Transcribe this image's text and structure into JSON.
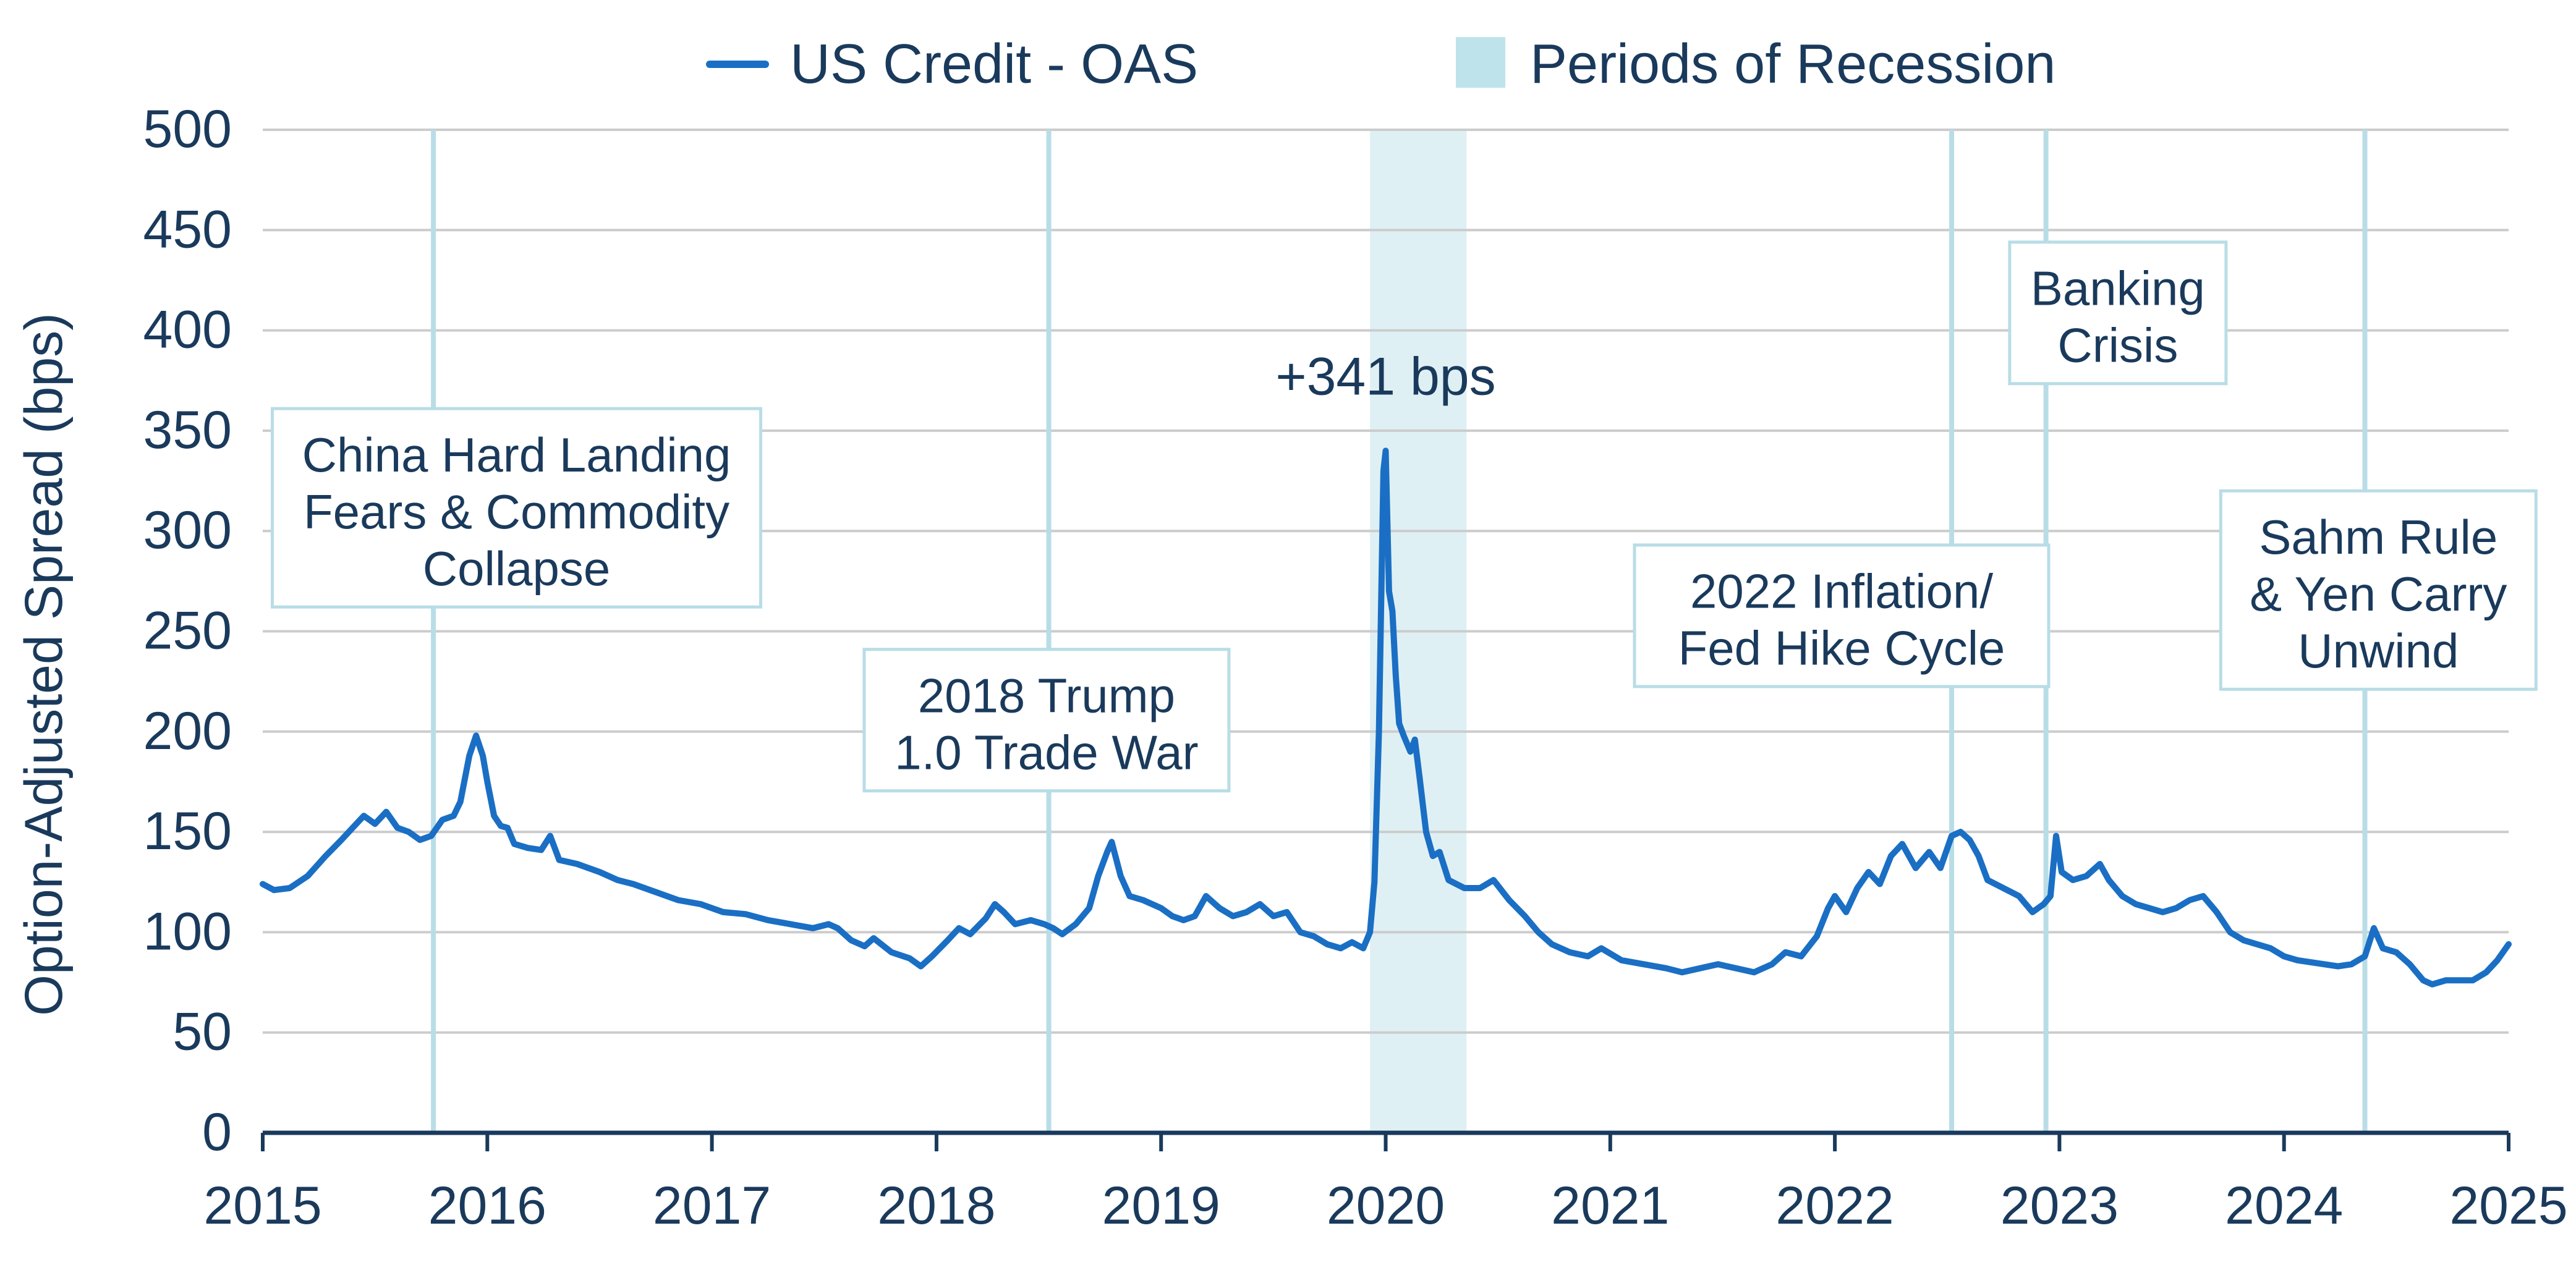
{
  "chart_data": {
    "type": "line",
    "title": "",
    "xlabel": "",
    "ylabel": "Option-Adjusted Spread (bps)",
    "xlim": [
      2015,
      2025
    ],
    "ylim": [
      0,
      500
    ],
    "y_ticks": [
      0,
      50,
      100,
      150,
      200,
      250,
      300,
      350,
      400,
      450,
      500
    ],
    "x_ticks": [
      2015,
      2016,
      2017,
      2018,
      2019,
      2020,
      2021,
      2022,
      2023,
      2024,
      2025
    ],
    "grid": "horizontal",
    "legend_placement": "top-center",
    "legend": [
      "US Credit - OAS",
      "Periods of Recession"
    ],
    "series": [
      {
        "name": "US Credit - OAS",
        "color": "#1a6fc4",
        "points": [
          [
            2015.0,
            124
          ],
          [
            2015.05,
            121
          ],
          [
            2015.12,
            122
          ],
          [
            2015.2,
            128
          ],
          [
            2015.28,
            138
          ],
          [
            2015.35,
            146
          ],
          [
            2015.4,
            152
          ],
          [
            2015.45,
            158
          ],
          [
            2015.5,
            154
          ],
          [
            2015.55,
            160
          ],
          [
            2015.6,
            152
          ],
          [
            2015.65,
            150
          ],
          [
            2015.7,
            146
          ],
          [
            2015.75,
            148
          ],
          [
            2015.8,
            156
          ],
          [
            2015.85,
            158
          ],
          [
            2015.88,
            165
          ],
          [
            2015.92,
            188
          ],
          [
            2015.95,
            198
          ],
          [
            2015.98,
            188
          ],
          [
            2016.0,
            175
          ],
          [
            2016.03,
            158
          ],
          [
            2016.06,
            153
          ],
          [
            2016.09,
            152
          ],
          [
            2016.12,
            144
          ],
          [
            2016.18,
            142
          ],
          [
            2016.24,
            141
          ],
          [
            2016.28,
            148
          ],
          [
            2016.32,
            136
          ],
          [
            2016.4,
            134
          ],
          [
            2016.5,
            130
          ],
          [
            2016.58,
            126
          ],
          [
            2016.65,
            124
          ],
          [
            2016.75,
            120
          ],
          [
            2016.85,
            116
          ],
          [
            2016.95,
            114
          ],
          [
            2017.05,
            110
          ],
          [
            2017.15,
            109
          ],
          [
            2017.25,
            106
          ],
          [
            2017.35,
            104
          ],
          [
            2017.45,
            102
          ],
          [
            2017.52,
            104
          ],
          [
            2017.56,
            102
          ],
          [
            2017.62,
            96
          ],
          [
            2017.68,
            93
          ],
          [
            2017.72,
            97
          ],
          [
            2017.8,
            90
          ],
          [
            2017.88,
            87
          ],
          [
            2017.93,
            83
          ],
          [
            2017.98,
            88
          ],
          [
            2018.05,
            96
          ],
          [
            2018.1,
            102
          ],
          [
            2018.15,
            99
          ],
          [
            2018.22,
            107
          ],
          [
            2018.26,
            114
          ],
          [
            2018.3,
            110
          ],
          [
            2018.35,
            104
          ],
          [
            2018.42,
            106
          ],
          [
            2018.48,
            104
          ],
          [
            2018.52,
            102
          ],
          [
            2018.56,
            99
          ],
          [
            2018.62,
            104
          ],
          [
            2018.68,
            112
          ],
          [
            2018.72,
            128
          ],
          [
            2018.76,
            140
          ],
          [
            2018.78,
            145
          ],
          [
            2018.82,
            128
          ],
          [
            2018.86,
            118
          ],
          [
            2018.92,
            116
          ],
          [
            2019.0,
            112
          ],
          [
            2019.05,
            108
          ],
          [
            2019.1,
            106
          ],
          [
            2019.15,
            108
          ],
          [
            2019.2,
            118
          ],
          [
            2019.26,
            112
          ],
          [
            2019.32,
            108
          ],
          [
            2019.38,
            110
          ],
          [
            2019.44,
            114
          ],
          [
            2019.5,
            108
          ],
          [
            2019.56,
            110
          ],
          [
            2019.62,
            100
          ],
          [
            2019.68,
            98
          ],
          [
            2019.74,
            94
          ],
          [
            2019.8,
            92
          ],
          [
            2019.85,
            95
          ],
          [
            2019.9,
            92
          ],
          [
            2019.93,
            100
          ],
          [
            2019.95,
            125
          ],
          [
            2019.97,
            200
          ],
          [
            2019.99,
            330
          ],
          [
            2020.0,
            340
          ],
          [
            2020.015,
            270
          ],
          [
            2020.03,
            260
          ],
          [
            2020.045,
            228
          ],
          [
            2020.06,
            204
          ],
          [
            2020.08,
            198
          ],
          [
            2020.11,
            190
          ],
          [
            2020.13,
            196
          ],
          [
            2020.15,
            178
          ],
          [
            2020.18,
            150
          ],
          [
            2020.21,
            138
          ],
          [
            2020.24,
            140
          ],
          [
            2020.28,
            126
          ],
          [
            2020.35,
            122
          ],
          [
            2020.42,
            122
          ],
          [
            2020.48,
            126
          ],
          [
            2020.55,
            116
          ],
          [
            2020.62,
            108
          ],
          [
            2020.68,
            100
          ],
          [
            2020.74,
            94
          ],
          [
            2020.82,
            90
          ],
          [
            2020.9,
            88
          ],
          [
            2020.96,
            92
          ],
          [
            2021.05,
            86
          ],
          [
            2021.15,
            84
          ],
          [
            2021.25,
            82
          ],
          [
            2021.32,
            80
          ],
          [
            2021.4,
            82
          ],
          [
            2021.48,
            84
          ],
          [
            2021.56,
            82
          ],
          [
            2021.64,
            80
          ],
          [
            2021.72,
            84
          ],
          [
            2021.78,
            90
          ],
          [
            2021.85,
            88
          ],
          [
            2021.92,
            98
          ],
          [
            2021.97,
            112
          ],
          [
            2022.0,
            118
          ],
          [
            2022.05,
            110
          ],
          [
            2022.1,
            122
          ],
          [
            2022.15,
            130
          ],
          [
            2022.2,
            124
          ],
          [
            2022.25,
            138
          ],
          [
            2022.3,
            144
          ],
          [
            2022.36,
            132
          ],
          [
            2022.42,
            140
          ],
          [
            2022.47,
            132
          ],
          [
            2022.52,
            148
          ],
          [
            2022.56,
            150
          ],
          [
            2022.6,
            146
          ],
          [
            2022.64,
            138
          ],
          [
            2022.68,
            126
          ],
          [
            2022.75,
            122
          ],
          [
            2022.82,
            118
          ],
          [
            2022.88,
            110
          ],
          [
            2022.93,
            114
          ],
          [
            2022.96,
            118
          ],
          [
            2022.985,
            148
          ],
          [
            2023.01,
            130
          ],
          [
            2023.06,
            126
          ],
          [
            2023.12,
            128
          ],
          [
            2023.18,
            134
          ],
          [
            2023.22,
            126
          ],
          [
            2023.28,
            118
          ],
          [
            2023.34,
            114
          ],
          [
            2023.4,
            112
          ],
          [
            2023.46,
            110
          ],
          [
            2023.52,
            112
          ],
          [
            2023.58,
            116
          ],
          [
            2023.64,
            118
          ],
          [
            2023.7,
            110
          ],
          [
            2023.76,
            100
          ],
          [
            2023.82,
            96
          ],
          [
            2023.88,
            94
          ],
          [
            2023.94,
            92
          ],
          [
            2024.0,
            88
          ],
          [
            2024.06,
            86
          ],
          [
            2024.12,
            85
          ],
          [
            2024.18,
            84
          ],
          [
            2024.24,
            83
          ],
          [
            2024.3,
            84
          ],
          [
            2024.36,
            88
          ],
          [
            2024.4,
            102
          ],
          [
            2024.44,
            92
          ],
          [
            2024.5,
            90
          ],
          [
            2024.56,
            84
          ],
          [
            2024.62,
            76
          ],
          [
            2024.66,
            74
          ],
          [
            2024.72,
            76
          ],
          [
            2024.78,
            76
          ],
          [
            2024.84,
            76
          ],
          [
            2024.9,
            80
          ],
          [
            2024.95,
            86
          ],
          [
            2025.0,
            94
          ]
        ]
      }
    ],
    "recession_periods": [
      [
        2019.93,
        2020.36
      ]
    ],
    "event_lines": [
      2015.76,
      2018.5,
      2022.52,
      2022.94,
      2024.36
    ],
    "annotations": [
      {
        "lines": [
          "China Hard Landing",
          "Fears & Commodity",
          "Collapse"
        ],
        "x": 2016.13,
        "y": 361
      },
      {
        "lines": [
          "2018 Trump",
          "1.0 Trade War"
        ],
        "x": 2018.49,
        "y": 241
      },
      {
        "lines": [
          "2022 Inflation/",
          "Fed Hike Cycle"
        ],
        "x": 2022.03,
        "y": 293
      },
      {
        "lines": [
          "Banking",
          "Crisis"
        ],
        "x": 2023.26,
        "y": 444
      },
      {
        "lines": [
          "Sahm Rule",
          "& Yen Carry",
          "Unwind"
        ],
        "x": 2024.42,
        "y": 320
      }
    ],
    "peak_label": {
      "text": "+341 bps",
      "x": 2020.0,
      "y": 368
    }
  },
  "colors": {
    "line": "#1a6fc4",
    "recession": "#dff0f4",
    "event_line": "#b8dde6",
    "grid": "#cccccc",
    "axis": "#1a3a5c",
    "text": "#1a3a5c",
    "annotation_border": "#b8dde6"
  }
}
